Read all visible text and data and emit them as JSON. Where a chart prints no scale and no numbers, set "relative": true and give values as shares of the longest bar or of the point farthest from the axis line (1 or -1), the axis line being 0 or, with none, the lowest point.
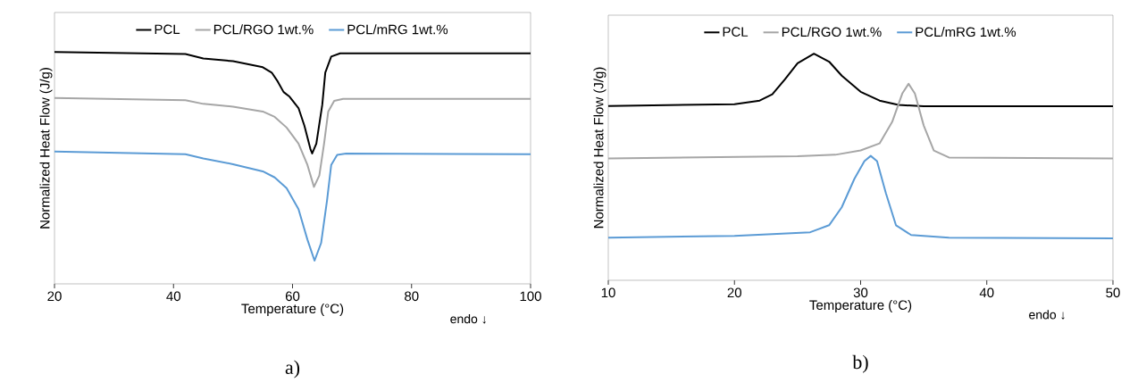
{
  "chart_data": [
    {
      "type": "line",
      "relative": true,
      "xlabel": "Temperature (°C)",
      "ylabel": "Normalized Heat Flow (J/g)",
      "xlim": [
        20,
        100
      ],
      "xticks": [
        20,
        40,
        60,
        80,
        100
      ],
      "legend": "top",
      "line_style": "solid",
      "annotations": [
        "endo ↓",
        "a)"
      ],
      "series": [
        {
          "name": "PCL",
          "color": "#000000",
          "x": [
            20,
            42,
            45,
            50,
            55,
            56.5,
            57.5,
            58.5,
            59.5,
            61,
            62,
            63,
            63.3,
            64,
            65,
            65.5,
            66.5,
            68,
            100
          ],
          "values": [
            1.0,
            0.991,
            0.972,
            0.96,
            0.934,
            0.911,
            0.873,
            0.827,
            0.807,
            0.758,
            0.681,
            0.582,
            0.562,
            0.605,
            0.773,
            0.911,
            0.98,
            0.994,
            0.994
          ]
        },
        {
          "name": "PCL/RGO 1wt.%",
          "color": "#a6a6a6",
          "x": [
            20,
            42,
            45,
            50,
            55,
            57,
            59,
            61,
            62.5,
            63.6,
            64.5,
            65.3,
            66,
            67,
            68.5,
            100
          ],
          "values": [
            0.801,
            0.792,
            0.776,
            0.764,
            0.743,
            0.72,
            0.674,
            0.605,
            0.513,
            0.418,
            0.467,
            0.605,
            0.743,
            0.789,
            0.798,
            0.798
          ]
        },
        {
          "name": "PCL/mRG 1wt.%",
          "color": "#5b9bd5",
          "x": [
            20,
            42,
            45,
            50,
            55,
            57,
            59,
            61,
            62.5,
            63.7,
            64.8,
            65.8,
            66.5,
            67.5,
            69,
            100
          ],
          "values": [
            0.571,
            0.559,
            0.541,
            0.516,
            0.485,
            0.459,
            0.413,
            0.322,
            0.191,
            0.1,
            0.176,
            0.36,
            0.513,
            0.556,
            0.562,
            0.559
          ]
        }
      ]
    },
    {
      "type": "line",
      "relative": true,
      "xlabel": "Temperature (°C)",
      "ylabel": "Normalized Heat Flow (J/g)",
      "xlim": [
        10,
        50
      ],
      "xticks": [
        10,
        20,
        30,
        40,
        50
      ],
      "legend": "top",
      "line_style": "solid",
      "annotations": [
        "endo ↓",
        "b)"
      ],
      "series": [
        {
          "name": "PCL",
          "color": "#000000",
          "x": [
            10,
            20,
            22,
            23,
            24,
            25,
            26.3,
            27.5,
            28.5,
            30,
            31.5,
            33,
            35,
            50
          ],
          "values": [
            0.769,
            0.777,
            0.793,
            0.821,
            0.887,
            0.958,
            1.0,
            0.965,
            0.903,
            0.832,
            0.793,
            0.774,
            0.768,
            0.768
          ]
        },
        {
          "name": "PCL/RGO 1wt.%",
          "color": "#a6a6a6",
          "x": [
            10,
            25,
            28,
            30,
            31.5,
            32.5,
            33.3,
            33.8,
            34.3,
            35,
            35.8,
            37,
            50
          ],
          "values": [
            0.538,
            0.548,
            0.554,
            0.573,
            0.604,
            0.699,
            0.824,
            0.867,
            0.824,
            0.683,
            0.573,
            0.542,
            0.538
          ]
        },
        {
          "name": "PCL/mRG 1wt.%",
          "color": "#5b9bd5",
          "x": [
            10,
            20,
            26,
            27.5,
            28.5,
            29.5,
            30.3,
            30.8,
            31.3,
            32,
            32.8,
            34,
            37,
            50
          ],
          "values": [
            0.188,
            0.196,
            0.212,
            0.243,
            0.322,
            0.447,
            0.526,
            0.549,
            0.526,
            0.385,
            0.243,
            0.2,
            0.188,
            0.185
          ]
        }
      ]
    }
  ]
}
